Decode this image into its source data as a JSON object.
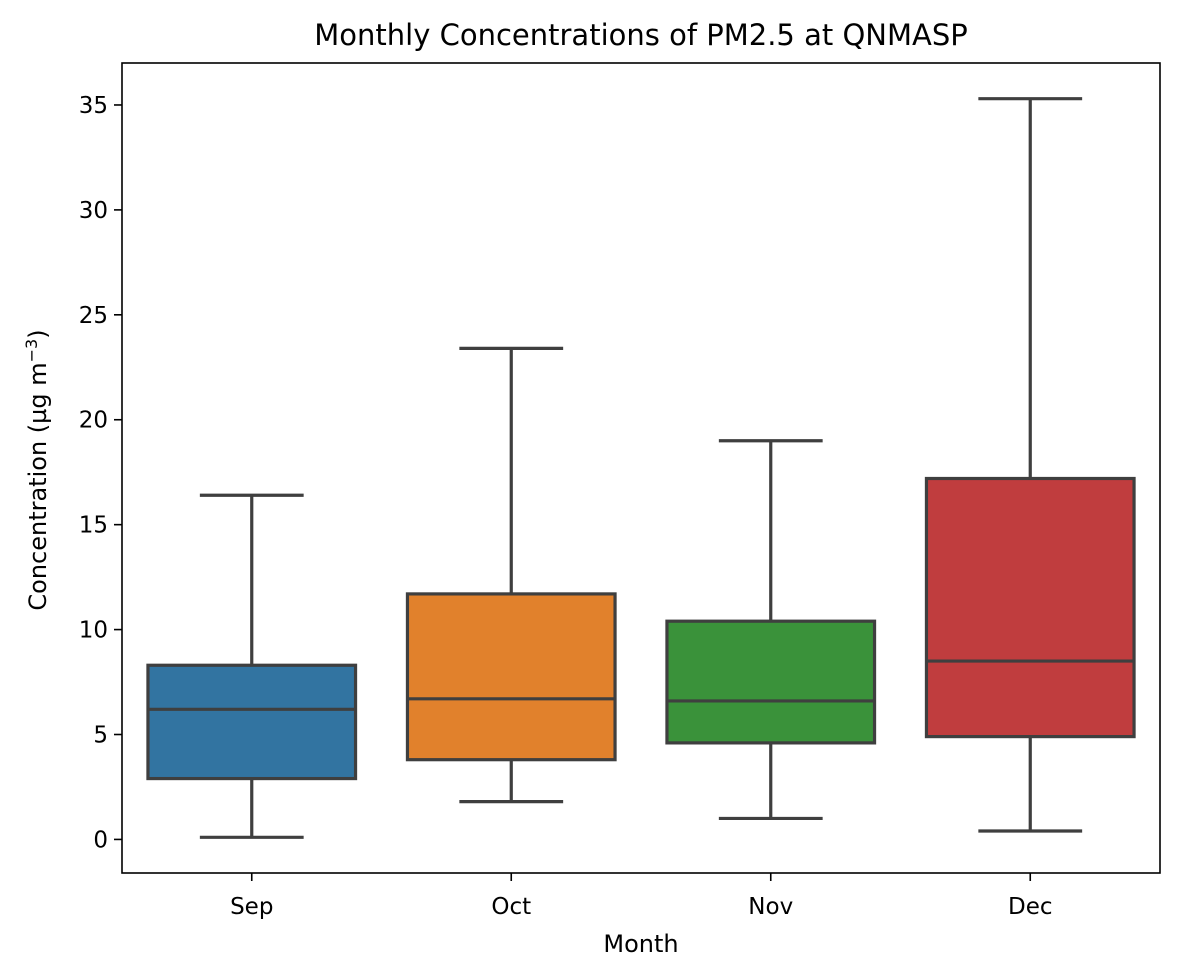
{
  "chart_data": {
    "type": "boxplot",
    "title": "Monthly Concentrations of PM2.5 at QNMASP",
    "xlabel": "Month",
    "ylabel": "Concentration (µg m",
    "ylabel_superscript": "−3",
    "ylabel_suffix": ")",
    "categories": [
      "Sep",
      "Oct",
      "Nov",
      "Dec"
    ],
    "ylim": [
      -1.6,
      37
    ],
    "yticks": [
      0,
      5,
      10,
      15,
      20,
      25,
      30,
      35
    ],
    "ytick_labels": [
      "0",
      "5",
      "10",
      "15",
      "20",
      "25",
      "30",
      "35"
    ],
    "grid": false,
    "boxes": [
      {
        "category": "Sep",
        "whisker_low": 0.1,
        "q1": 2.9,
        "median": 6.2,
        "q3": 8.3,
        "whisker_high": 16.4,
        "color": "#3274a1"
      },
      {
        "category": "Oct",
        "whisker_low": 1.8,
        "q1": 3.8,
        "median": 6.7,
        "q3": 11.7,
        "whisker_high": 23.4,
        "color": "#e1812c"
      },
      {
        "category": "Nov",
        "whisker_low": 1.0,
        "q1": 4.6,
        "median": 6.6,
        "q3": 10.4,
        "whisker_high": 19.0,
        "color": "#3a923a"
      },
      {
        "category": "Dec",
        "whisker_low": 0.4,
        "q1": 4.9,
        "median": 8.5,
        "q3": 17.2,
        "whisker_high": 35.3,
        "color": "#c03d3e"
      }
    ],
    "line_color": "#3f3f3f"
  }
}
